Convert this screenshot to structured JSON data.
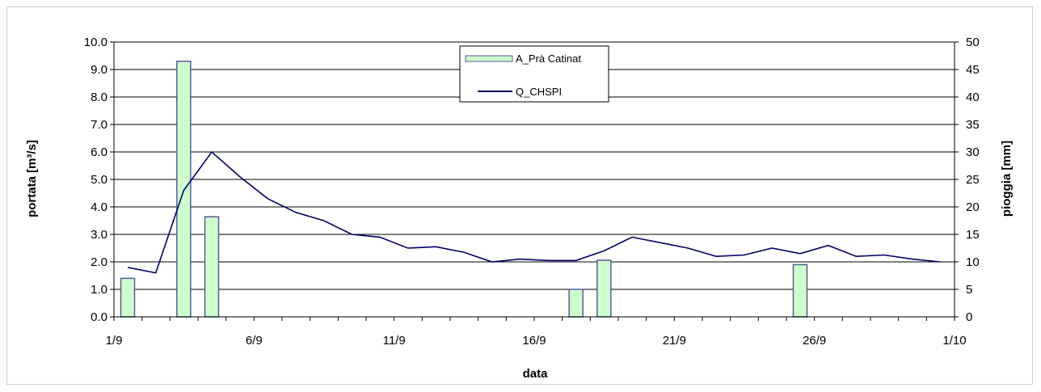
{
  "chart_data": {
    "type": "bar+line",
    "xlabel": "data",
    "ylabel_left": "portata [m³/s]",
    "ylabel_right": "pioggia [mm]",
    "x_range": [
      "1/9",
      "1/10"
    ],
    "x_ticks": [
      "1/9",
      "6/9",
      "11/9",
      "16/9",
      "21/9",
      "26/9",
      "1/10"
    ],
    "ylim_left": [
      0,
      10
    ],
    "y_ticks_left": [
      "0.0",
      "1.0",
      "2.0",
      "3.0",
      "4.0",
      "5.0",
      "6.0",
      "7.0",
      "8.0",
      "9.0",
      "10.0"
    ],
    "ylim_right": [
      0,
      50
    ],
    "y_ticks_right": [
      "0",
      "5",
      "10",
      "15",
      "20",
      "25",
      "30",
      "35",
      "40",
      "45",
      "50"
    ],
    "grid": true,
    "legend_placement": "top-center",
    "series": [
      {
        "name": "A_Prà Catinat",
        "type": "bar",
        "axis": "right",
        "color": "#ccffcc",
        "edge_color": "#5a5a9a",
        "points": [
          {
            "x": "1/9",
            "y": 7
          },
          {
            "x": "3/9",
            "y": 46.5
          },
          {
            "x": "4/9",
            "y": 18.2
          },
          {
            "x": "17/9",
            "y": 5
          },
          {
            "x": "18/9",
            "y": 10.3
          },
          {
            "x": "25/9",
            "y": 9.5
          }
        ]
      },
      {
        "name": "Q_CHSPI",
        "type": "line",
        "axis": "left",
        "color": "#000066",
        "points": [
          {
            "x": "1/9",
            "y": 1.8
          },
          {
            "x": "2/9",
            "y": 1.6
          },
          {
            "x": "3/9",
            "y": 4.6
          },
          {
            "x": "4/9",
            "y": 6.0
          },
          {
            "x": "5/9",
            "y": 5.1
          },
          {
            "x": "6/9",
            "y": 4.3
          },
          {
            "x": "7/9",
            "y": 3.8
          },
          {
            "x": "8/9",
            "y": 3.5
          },
          {
            "x": "9/9",
            "y": 3.0
          },
          {
            "x": "10/9",
            "y": 2.9
          },
          {
            "x": "11/9",
            "y": 2.5
          },
          {
            "x": "12/9",
            "y": 2.55
          },
          {
            "x": "13/9",
            "y": 2.35
          },
          {
            "x": "14/9",
            "y": 2.0
          },
          {
            "x": "15/9",
            "y": 2.1
          },
          {
            "x": "16/9",
            "y": 2.05
          },
          {
            "x": "17/9",
            "y": 2.05
          },
          {
            "x": "18/9",
            "y": 2.4
          },
          {
            "x": "19/9",
            "y": 2.9
          },
          {
            "x": "20/9",
            "y": 2.7
          },
          {
            "x": "21/9",
            "y": 2.5
          },
          {
            "x": "22/9",
            "y": 2.2
          },
          {
            "x": "23/9",
            "y": 2.25
          },
          {
            "x": "24/9",
            "y": 2.5
          },
          {
            "x": "25/9",
            "y": 2.3
          },
          {
            "x": "26/9",
            "y": 2.6
          },
          {
            "x": "27/9",
            "y": 2.2
          },
          {
            "x": "28/9",
            "y": 2.25
          },
          {
            "x": "29/9",
            "y": 2.1
          },
          {
            "x": "30/9",
            "y": 2.0
          }
        ]
      }
    ]
  }
}
